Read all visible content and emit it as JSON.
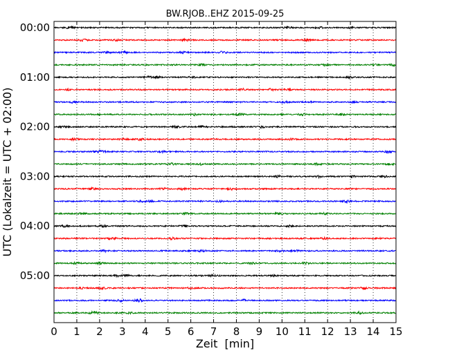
{
  "chart_data": {
    "type": "line",
    "title": "BW.RJOB..EHZ 2015-09-25",
    "xlabel": "Zeit  [min]",
    "ylabel": "UTC (Lokalzeit = UTC + 02:00)",
    "xlim": [
      0,
      15
    ],
    "x_ticks": [
      "0",
      "1",
      "2",
      "3",
      "4",
      "5",
      "6",
      "7",
      "8",
      "9",
      "10",
      "11",
      "12",
      "13",
      "14",
      "15"
    ],
    "y_tick_labels": [
      "00:00",
      "01:00",
      "02:00",
      "03:00",
      "04:00",
      "05:00"
    ],
    "grid": "vertical dotted lines at each minute",
    "trace_colors": [
      "#000000",
      "#ff0000",
      "#0000ff",
      "#008000"
    ],
    "trace_count": 24,
    "trace_interval_minutes": 15,
    "traces": [
      {
        "start": "00:00",
        "color": "#000000"
      },
      {
        "start": "00:15",
        "color": "#ff0000"
      },
      {
        "start": "00:30",
        "color": "#0000ff"
      },
      {
        "start": "00:45",
        "color": "#008000"
      },
      {
        "start": "01:00",
        "color": "#000000"
      },
      {
        "start": "01:15",
        "color": "#ff0000"
      },
      {
        "start": "01:30",
        "color": "#0000ff"
      },
      {
        "start": "01:45",
        "color": "#008000"
      },
      {
        "start": "02:00",
        "color": "#000000"
      },
      {
        "start": "02:15",
        "color": "#ff0000"
      },
      {
        "start": "02:30",
        "color": "#0000ff"
      },
      {
        "start": "02:45",
        "color": "#008000"
      },
      {
        "start": "03:00",
        "color": "#000000"
      },
      {
        "start": "03:15",
        "color": "#ff0000"
      },
      {
        "start": "03:30",
        "color": "#0000ff"
      },
      {
        "start": "03:45",
        "color": "#008000"
      },
      {
        "start": "04:00",
        "color": "#000000"
      },
      {
        "start": "04:15",
        "color": "#ff0000"
      },
      {
        "start": "04:30",
        "color": "#0000ff"
      },
      {
        "start": "04:45",
        "color": "#008000"
      },
      {
        "start": "05:00",
        "color": "#000000"
      },
      {
        "start": "05:15",
        "color": "#ff0000"
      },
      {
        "start": "05:30",
        "color": "#0000ff"
      },
      {
        "start": "05:45",
        "color": "#008000"
      }
    ]
  }
}
